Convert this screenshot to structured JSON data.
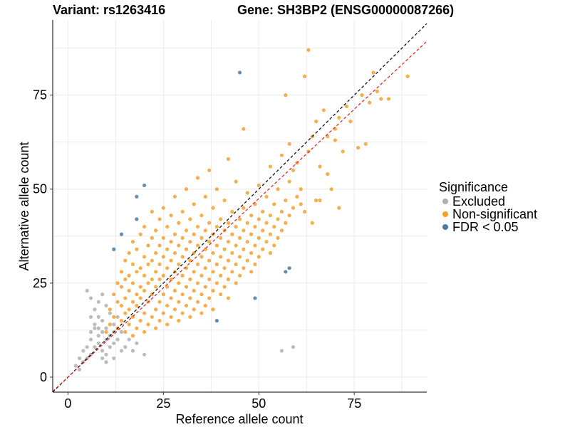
{
  "chart_data": {
    "type": "scatter",
    "title_left": "Variant: rs1263416",
    "title_right": "Gene: SH3BP2 (ENSG00000087266)",
    "xlabel": "Reference allele count",
    "ylabel": "Alternative allele count",
    "xlim": [
      -4,
      94
    ],
    "ylim": [
      -4,
      95
    ],
    "x_ticks": [
      0,
      25,
      50,
      75
    ],
    "y_ticks": [
      0,
      25,
      50,
      75
    ],
    "grid": true,
    "legend": {
      "title": "Significance",
      "position": "right"
    },
    "reference_lines": [
      {
        "name": "identity",
        "slope": 1.0,
        "intercept": 0,
        "color": "#000000",
        "style": "dashed"
      },
      {
        "name": "fit",
        "slope": 0.95,
        "intercept": 0,
        "color": "#e31a1c",
        "style": "dashed"
      }
    ],
    "series": [
      {
        "name": "Excluded",
        "color": "#b0b0b0",
        "points": [
          [
            2,
            3
          ],
          [
            3,
            2
          ],
          [
            3,
            5
          ],
          [
            4,
            4
          ],
          [
            4,
            7
          ],
          [
            5,
            5
          ],
          [
            5,
            8
          ],
          [
            6,
            6
          ],
          [
            6,
            10
          ],
          [
            6,
            12
          ],
          [
            7,
            8
          ],
          [
            7,
            14
          ],
          [
            7,
            18
          ],
          [
            8,
            9
          ],
          [
            8,
            11
          ],
          [
            8,
            16
          ],
          [
            8,
            20
          ],
          [
            9,
            7
          ],
          [
            9,
            12
          ],
          [
            9,
            15
          ],
          [
            9,
            22
          ],
          [
            10,
            10
          ],
          [
            10,
            13
          ],
          [
            10,
            6
          ],
          [
            10,
            19
          ],
          [
            11,
            8
          ],
          [
            11,
            11
          ],
          [
            11,
            17
          ],
          [
            12,
            9
          ],
          [
            12,
            14
          ],
          [
            12,
            5
          ],
          [
            13,
            10
          ],
          [
            13,
            16
          ],
          [
            14,
            7
          ],
          [
            14,
            12
          ],
          [
            15,
            8
          ],
          [
            16,
            10
          ],
          [
            17,
            7
          ],
          [
            18,
            9
          ],
          [
            20,
            6
          ],
          [
            56,
            7
          ],
          [
            59,
            8
          ],
          [
            5,
            23
          ],
          [
            6,
            21
          ],
          [
            7,
            13
          ],
          [
            9,
            5
          ],
          [
            10,
            4
          ],
          [
            12,
            12
          ],
          [
            8,
            13
          ],
          [
            6,
            16
          ]
        ]
      },
      {
        "name": "Non-significant",
        "color": "#f6a02c",
        "points": [
          [
            10,
            12
          ],
          [
            11,
            14
          ],
          [
            11,
            18
          ],
          [
            12,
            16
          ],
          [
            12,
            22
          ],
          [
            13,
            13
          ],
          [
            13,
            20
          ],
          [
            13,
            25
          ],
          [
            14,
            15
          ],
          [
            14,
            19
          ],
          [
            14,
            24
          ],
          [
            14,
            28
          ],
          [
            15,
            12
          ],
          [
            15,
            17
          ],
          [
            15,
            21
          ],
          [
            15,
            26
          ],
          [
            15,
            31
          ],
          [
            16,
            14
          ],
          [
            16,
            18
          ],
          [
            16,
            23
          ],
          [
            16,
            27
          ],
          [
            16,
            33
          ],
          [
            17,
            11
          ],
          [
            17,
            16
          ],
          [
            17,
            20
          ],
          [
            17,
            25
          ],
          [
            17,
            30
          ],
          [
            17,
            36
          ],
          [
            18,
            13
          ],
          [
            18,
            19
          ],
          [
            18,
            22
          ],
          [
            18,
            28
          ],
          [
            18,
            34
          ],
          [
            19,
            15
          ],
          [
            19,
            21
          ],
          [
            19,
            24
          ],
          [
            19,
            29
          ],
          [
            19,
            38
          ],
          [
            20,
            12
          ],
          [
            20,
            17
          ],
          [
            20,
            23
          ],
          [
            20,
            27
          ],
          [
            20,
            32
          ],
          [
            20,
            40
          ],
          [
            21,
            14
          ],
          [
            21,
            20
          ],
          [
            21,
            25
          ],
          [
            21,
            30
          ],
          [
            21,
            35
          ],
          [
            22,
            16
          ],
          [
            22,
            22
          ],
          [
            22,
            26
          ],
          [
            22,
            31
          ],
          [
            22,
            37
          ],
          [
            22,
            44
          ],
          [
            23,
            13
          ],
          [
            23,
            18
          ],
          [
            23,
            24
          ],
          [
            23,
            28
          ],
          [
            23,
            33
          ],
          [
            23,
            39
          ],
          [
            24,
            15
          ],
          [
            24,
            20
          ],
          [
            24,
            26
          ],
          [
            24,
            30
          ],
          [
            24,
            35
          ],
          [
            24,
            42
          ],
          [
            25,
            17
          ],
          [
            25,
            22
          ],
          [
            25,
            27
          ],
          [
            25,
            32
          ],
          [
            25,
            37
          ],
          [
            25,
            45
          ],
          [
            26,
            14
          ],
          [
            26,
            19
          ],
          [
            26,
            24
          ],
          [
            26,
            29
          ],
          [
            26,
            34
          ],
          [
            26,
            40
          ],
          [
            27,
            16
          ],
          [
            27,
            21
          ],
          [
            27,
            26
          ],
          [
            27,
            31
          ],
          [
            27,
            36
          ],
          [
            27,
            43
          ],
          [
            28,
            18
          ],
          [
            28,
            23
          ],
          [
            28,
            28
          ],
          [
            28,
            33
          ],
          [
            28,
            38
          ],
          [
            28,
            48
          ],
          [
            29,
            15
          ],
          [
            29,
            20
          ],
          [
            29,
            25
          ],
          [
            29,
            30
          ],
          [
            29,
            35
          ],
          [
            29,
            41
          ],
          [
            30,
            17
          ],
          [
            30,
            22
          ],
          [
            30,
            27
          ],
          [
            30,
            32
          ],
          [
            30,
            37
          ],
          [
            30,
            44
          ],
          [
            31,
            19
          ],
          [
            31,
            24
          ],
          [
            31,
            29
          ],
          [
            31,
            34
          ],
          [
            31,
            39
          ],
          [
            31,
            50
          ],
          [
            32,
            16
          ],
          [
            32,
            21
          ],
          [
            32,
            26
          ],
          [
            32,
            31
          ],
          [
            32,
            36
          ],
          [
            32,
            42
          ],
          [
            33,
            18
          ],
          [
            33,
            23
          ],
          [
            33,
            28
          ],
          [
            33,
            33
          ],
          [
            33,
            38
          ],
          [
            33,
            46
          ],
          [
            34,
            20
          ],
          [
            34,
            25
          ],
          [
            34,
            30
          ],
          [
            34,
            35
          ],
          [
            34,
            40
          ],
          [
            34,
            53
          ],
          [
            35,
            17
          ],
          [
            35,
            22
          ],
          [
            35,
            27
          ],
          [
            35,
            32
          ],
          [
            35,
            37
          ],
          [
            35,
            43
          ],
          [
            36,
            19
          ],
          [
            36,
            24
          ],
          [
            36,
            29
          ],
          [
            36,
            34
          ],
          [
            36,
            39
          ],
          [
            36,
            48
          ],
          [
            37,
            21
          ],
          [
            37,
            26
          ],
          [
            37,
            31
          ],
          [
            37,
            36
          ],
          [
            37,
            41
          ],
          [
            37,
            55
          ],
          [
            38,
            18
          ],
          [
            38,
            23
          ],
          [
            38,
            28
          ],
          [
            38,
            33
          ],
          [
            38,
            38
          ],
          [
            38,
            45
          ],
          [
            39,
            25
          ],
          [
            39,
            30
          ],
          [
            39,
            35
          ],
          [
            39,
            40
          ],
          [
            39,
            50
          ],
          [
            40,
            22
          ],
          [
            40,
            27
          ],
          [
            40,
            32
          ],
          [
            40,
            37
          ],
          [
            40,
            42
          ],
          [
            41,
            24
          ],
          [
            41,
            29
          ],
          [
            41,
            34
          ],
          [
            41,
            39
          ],
          [
            41,
            47
          ],
          [
            42,
            21
          ],
          [
            42,
            26
          ],
          [
            42,
            31
          ],
          [
            42,
            36
          ],
          [
            42,
            41
          ],
          [
            42,
            58
          ],
          [
            43,
            28
          ],
          [
            43,
            33
          ],
          [
            43,
            38
          ],
          [
            43,
            44
          ],
          [
            44,
            25
          ],
          [
            44,
            30
          ],
          [
            44,
            35
          ],
          [
            44,
            40
          ],
          [
            44,
            52
          ],
          [
            45,
            27
          ],
          [
            45,
            32
          ],
          [
            45,
            37
          ],
          [
            45,
            42
          ],
          [
            46,
            29
          ],
          [
            46,
            34
          ],
          [
            46,
            39
          ],
          [
            46,
            45
          ],
          [
            46,
            66
          ],
          [
            47,
            31
          ],
          [
            47,
            36
          ],
          [
            47,
            41
          ],
          [
            47,
            49
          ],
          [
            48,
            28
          ],
          [
            48,
            33
          ],
          [
            48,
            38
          ],
          [
            48,
            43
          ],
          [
            49,
            30
          ],
          [
            49,
            35
          ],
          [
            49,
            40
          ],
          [
            49,
            46
          ],
          [
            50,
            32
          ],
          [
            50,
            37
          ],
          [
            50,
            42
          ],
          [
            50,
            51
          ],
          [
            51,
            34
          ],
          [
            51,
            39
          ],
          [
            51,
            44
          ],
          [
            52,
            36
          ],
          [
            52,
            41
          ],
          [
            52,
            48
          ],
          [
            53,
            33
          ],
          [
            53,
            38
          ],
          [
            53,
            43
          ],
          [
            53,
            56
          ],
          [
            54,
            35
          ],
          [
            54,
            40
          ],
          [
            54,
            46
          ],
          [
            55,
            37
          ],
          [
            55,
            42
          ],
          [
            55,
            50
          ],
          [
            56,
            39
          ],
          [
            56,
            44
          ],
          [
            56,
            59
          ],
          [
            57,
            41
          ],
          [
            57,
            47
          ],
          [
            57,
            75
          ],
          [
            58,
            43
          ],
          [
            58,
            52
          ],
          [
            58,
            62
          ],
          [
            59,
            45
          ],
          [
            59,
            55
          ],
          [
            60,
            48
          ],
          [
            60,
            57
          ],
          [
            61,
            46
          ],
          [
            61,
            50
          ],
          [
            62,
            44
          ],
          [
            62,
            80
          ],
          [
            63,
            87
          ],
          [
            63,
            60
          ],
          [
            64,
            41
          ],
          [
            64,
            64
          ],
          [
            65,
            47
          ],
          [
            65,
            68
          ],
          [
            66,
            56
          ],
          [
            67,
            71
          ],
          [
            68,
            54
          ],
          [
            68,
            64
          ],
          [
            69,
            50
          ],
          [
            70,
            66
          ],
          [
            71,
            45
          ],
          [
            71,
            69
          ],
          [
            72,
            60
          ],
          [
            73,
            72
          ],
          [
            74,
            68
          ],
          [
            76,
            61
          ],
          [
            77,
            75
          ],
          [
            78,
            62
          ],
          [
            79,
            73
          ],
          [
            80,
            81
          ],
          [
            81,
            76
          ],
          [
            82,
            74
          ],
          [
            84,
            74
          ],
          [
            89,
            80
          ],
          [
            70,
            63
          ],
          [
            66,
            47
          ]
        ]
      },
      {
        "name": "FDR < 0.05",
        "color": "#4a78a4",
        "points": [
          [
            45,
            81
          ],
          [
            12,
            34
          ],
          [
            14,
            38
          ],
          [
            18,
            42
          ],
          [
            18,
            48
          ],
          [
            20,
            51
          ],
          [
            39,
            15
          ],
          [
            49,
            21
          ],
          [
            58,
            29
          ],
          [
            57,
            28
          ]
        ]
      }
    ]
  }
}
